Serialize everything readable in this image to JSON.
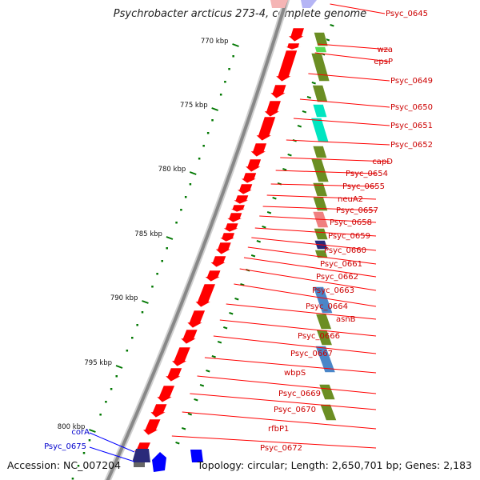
{
  "title": "Psychrobacter arcticus 273-4, complete genome",
  "footer": {
    "accession": "Accession: NC_007204",
    "summary": "Topology: circular; Length: 2,650,701 bp; Genes: 2,183"
  },
  "colors": {
    "forward_gene": "#ff0000",
    "olive_feature": "#6b8e23",
    "teal_feature": "#00e5c0",
    "steel_feature": "#4a86c8",
    "pink_feature": "#f08080",
    "navy_gene": "#2a2a7a",
    "blue_gene": "#0000ff",
    "backbone": "#888888",
    "tick": "#007700"
  },
  "scale": {
    "unit": "kbp",
    "major_ticks": [
      "770 kbp",
      "775 kbp",
      "780 kbp",
      "785 kbp",
      "790 kbp",
      "795 kbp",
      "800 kbp"
    ]
  },
  "genes_right": [
    "Psyc_0645",
    "wza",
    "epsP",
    "Psyc_0649",
    "Psyc_0650",
    "Psyc_0651",
    "Psyc_0652",
    "capD",
    "Psyc_0654",
    "Psyc_0655",
    "neuA2",
    "Psyc_0657",
    "Psyc_0658",
    "Psyc_0659",
    "Psyc_0660",
    "Psyc_0661",
    "Psyc_0662",
    "Psyc_0663",
    "Psyc_0664",
    "asnB",
    "Psyc_0666",
    "Psyc_0667",
    "wbpS",
    "Psyc_0669",
    "Psyc_0670",
    "rfbP1",
    "Psyc_0672"
  ],
  "genes_left": [
    "corA",
    "Psyc_0675"
  ]
}
